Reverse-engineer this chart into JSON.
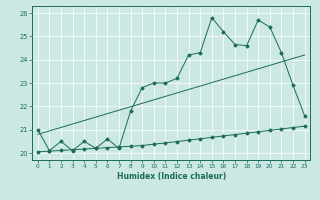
{
  "xlabel": "Humidex (Indice chaleur)",
  "bg_color": "#cce8e4",
  "line_color": "#1a6b5a",
  "grid_color": "#ffffff",
  "xlim": [
    -0.5,
    23.5
  ],
  "ylim": [
    19.7,
    26.3
  ],
  "xticks": [
    0,
    1,
    2,
    3,
    4,
    5,
    6,
    7,
    8,
    9,
    10,
    11,
    12,
    13,
    14,
    15,
    16,
    17,
    18,
    19,
    20,
    21,
    22,
    23
  ],
  "yticks": [
    20,
    21,
    22,
    23,
    24,
    25,
    26
  ],
  "line1_x": [
    0,
    1,
    2,
    3,
    4,
    5,
    6,
    7,
    8,
    9,
    10,
    11,
    12,
    13,
    14,
    15,
    16,
    17,
    18,
    19,
    20,
    21,
    22,
    23
  ],
  "line1_y": [
    21.0,
    20.1,
    20.5,
    20.1,
    20.5,
    20.2,
    20.6,
    20.2,
    21.8,
    22.8,
    23.0,
    23.0,
    23.2,
    24.2,
    24.3,
    25.8,
    25.2,
    24.65,
    24.6,
    25.7,
    25.4,
    24.3,
    22.9,
    21.6
  ],
  "trend_x": [
    0,
    23
  ],
  "trend_y": [
    20.8,
    24.2
  ],
  "line3_x": [
    0,
    1,
    2,
    3,
    4,
    5,
    6,
    7,
    8,
    9,
    10,
    11,
    12,
    13,
    14,
    15,
    16,
    17,
    18,
    19,
    20,
    21,
    22,
    23
  ],
  "line3_y": [
    20.05,
    20.08,
    20.11,
    20.14,
    20.17,
    20.2,
    20.23,
    20.26,
    20.29,
    20.32,
    20.38,
    20.43,
    20.49,
    20.55,
    20.61,
    20.67,
    20.73,
    20.79,
    20.85,
    20.91,
    20.97,
    21.03,
    21.09,
    21.15
  ]
}
